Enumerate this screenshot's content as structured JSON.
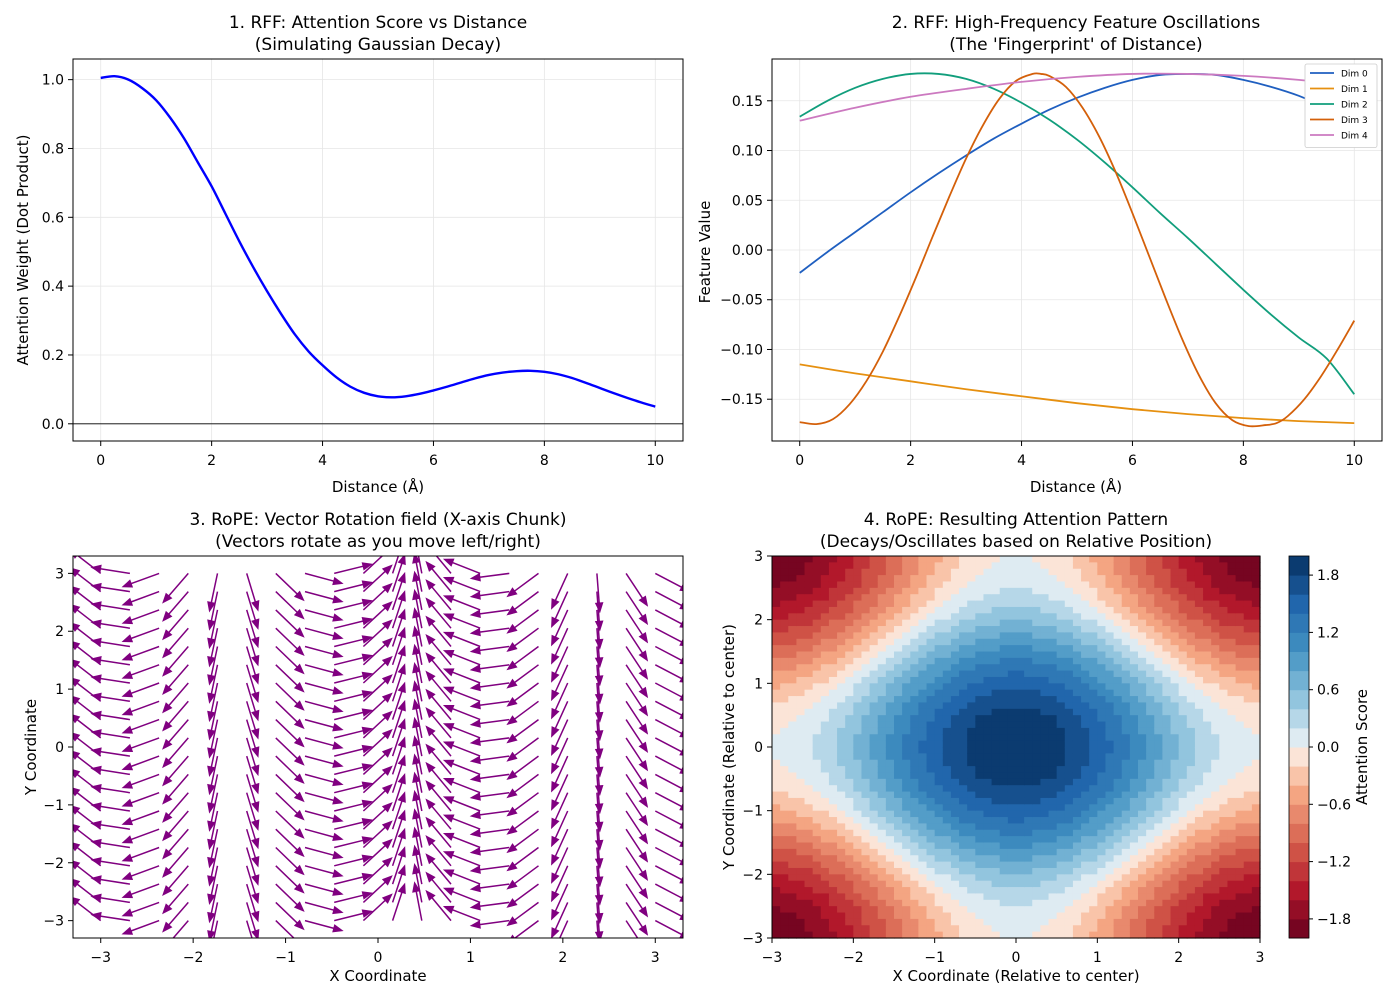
{
  "chart_data": [
    {
      "type": "line",
      "title_lines": [
        "1. RFF: Attention Score vs Distance",
        "(Simulating Gaussian Decay)"
      ],
      "xlabel": "Distance (Å)",
      "ylabel": "Attention Weight (Dot Product)",
      "xlim": [
        -0.5,
        10.5
      ],
      "ylim": [
        -0.05,
        1.06
      ],
      "xticks": [
        0,
        2,
        4,
        6,
        8,
        10
      ],
      "yticks": [
        0.0,
        0.2,
        0.4,
        0.6,
        0.8,
        1.0
      ],
      "grid": true,
      "reference_line_y": 0,
      "series": [
        {
          "color": "#0000ff",
          "x": [
            0,
            0.25,
            0.5,
            0.75,
            1,
            1.25,
            1.5,
            1.75,
            2,
            2.25,
            2.5,
            2.75,
            3,
            3.25,
            3.5,
            3.75,
            4,
            4.25,
            4.5,
            4.75,
            5,
            5.25,
            5.5,
            5.75,
            6,
            6.25,
            6.5,
            6.75,
            7,
            7.25,
            7.5,
            7.75,
            8,
            8.25,
            8.5,
            8.75,
            9,
            9.25,
            9.5,
            9.75,
            10
          ],
          "y": [
            1.005,
            1.01,
            1.0,
            0.975,
            0.94,
            0.89,
            0.83,
            0.76,
            0.69,
            0.61,
            0.53,
            0.455,
            0.385,
            0.32,
            0.26,
            0.21,
            0.17,
            0.135,
            0.108,
            0.09,
            0.08,
            0.077,
            0.08,
            0.087,
            0.097,
            0.108,
            0.12,
            0.132,
            0.142,
            0.149,
            0.153,
            0.154,
            0.151,
            0.144,
            0.133,
            0.119,
            0.104,
            0.089,
            0.075,
            0.062,
            0.05
          ]
        }
      ]
    },
    {
      "type": "line",
      "title_lines": [
        "2. RFF: High-Frequency Feature Oscillations",
        "(The 'Fingerprint' of Distance)"
      ],
      "xlabel": "Distance (Å)",
      "ylabel": "Feature Value",
      "xlim": [
        -0.5,
        10.5
      ],
      "ylim": [
        -0.192,
        0.192
      ],
      "xticks": [
        0,
        2,
        4,
        6,
        8,
        10
      ],
      "yticks": [
        -0.15,
        -0.1,
        -0.05,
        0.0,
        0.05,
        0.1,
        0.15
      ],
      "ytick_labels": [
        "−0.15",
        "−0.10",
        "−0.05",
        "0.00",
        "0.05",
        "0.10",
        "0.15"
      ],
      "grid": true,
      "legend_position": "top-right",
      "series": [
        {
          "name": "Dim 0",
          "color": "#1f5fc0",
          "x": [
            0,
            0.5,
            1,
            1.5,
            2,
            2.5,
            3,
            3.5,
            4,
            4.5,
            5,
            5.5,
            6,
            6.5,
            7,
            7.5,
            8,
            8.5,
            9,
            9.5,
            10
          ],
          "y": [
            -0.023,
            -0.002,
            0.018,
            0.038,
            0.058,
            0.077,
            0.095,
            0.112,
            0.127,
            0.141,
            0.153,
            0.163,
            0.171,
            0.176,
            0.177,
            0.176,
            0.171,
            0.164,
            0.155,
            0.143,
            0.128
          ]
        },
        {
          "name": "Dim 1",
          "color": "#e69010",
          "x": [
            0,
            1,
            2,
            3,
            4,
            5,
            6,
            7,
            8,
            9,
            10
          ],
          "y": [
            -0.115,
            -0.124,
            -0.132,
            -0.14,
            -0.147,
            -0.154,
            -0.16,
            -0.165,
            -0.169,
            -0.172,
            -0.174
          ]
        },
        {
          "name": "Dim 2",
          "color": "#119e7c",
          "x": [
            0,
            0.5,
            1,
            1.5,
            2,
            2.5,
            3,
            3.5,
            4,
            4.5,
            5,
            5.5,
            6,
            6.5,
            7,
            7.5,
            8,
            8.5,
            9,
            9.5,
            10
          ],
          "y": [
            0.134,
            0.15,
            0.163,
            0.172,
            0.177,
            0.177,
            0.172,
            0.162,
            0.148,
            0.131,
            0.111,
            0.088,
            0.063,
            0.037,
            0.012,
            -0.014,
            -0.04,
            -0.065,
            -0.088,
            -0.109,
            -0.145
          ]
        },
        {
          "name": "Dim 3",
          "color": "#d4600a",
          "x": [
            0,
            0.3,
            0.6,
            0.9,
            1.2,
            1.5,
            1.8,
            2.1,
            2.4,
            2.7,
            3.0,
            3.3,
            3.6,
            3.9,
            4.2,
            4.35,
            4.5,
            4.8,
            5.1,
            5.4,
            5.7,
            6.0,
            6.3,
            6.6,
            6.9,
            7.2,
            7.5,
            7.8,
            8.1,
            8.4,
            8.6,
            8.8,
            9.1,
            9.4,
            9.7,
            10.0
          ],
          "y": [
            -0.173,
            -0.175,
            -0.17,
            -0.155,
            -0.132,
            -0.102,
            -0.066,
            -0.027,
            0.014,
            0.054,
            0.092,
            0.125,
            0.152,
            0.17,
            0.177,
            0.177,
            0.175,
            0.164,
            0.143,
            0.114,
            0.078,
            0.037,
            -0.006,
            -0.049,
            -0.09,
            -0.126,
            -0.154,
            -0.171,
            -0.177,
            -0.176,
            -0.174,
            -0.167,
            -0.15,
            -0.127,
            -0.1,
            -0.071
          ]
        },
        {
          "name": "Dim 4",
          "color": "#cc79c0",
          "x": [
            0,
            1,
            2,
            3,
            4,
            5,
            6,
            7,
            8,
            9,
            10
          ],
          "y": [
            0.13,
            0.143,
            0.154,
            0.162,
            0.169,
            0.174,
            0.177,
            0.177,
            0.175,
            0.171,
            0.165
          ]
        }
      ]
    },
    {
      "type": "quiver",
      "title_lines": [
        "3. RoPE: Vector Rotation field (X-axis Chunk)",
        "(Vectors rotate as you move left/right)"
      ],
      "xlabel": "X Coordinate",
      "ylabel": "Y Coordinate",
      "xlim": [
        -3.3,
        3.3
      ],
      "ylim": [
        -3.3,
        3.3
      ],
      "xticks": [
        -3,
        -2,
        -1,
        0,
        1,
        2,
        3
      ],
      "yticks": [
        -3,
        -2,
        -1,
        0,
        1,
        2,
        3
      ],
      "tick_labels": [
        "−3",
        "−2",
        "−1",
        "0",
        "1",
        "2",
        "3"
      ],
      "grid": false,
      "color": "#800080",
      "grid_x_range": [
        -3,
        3
      ],
      "grid_x_count": 20,
      "grid_y_range": [
        -3,
        3
      ],
      "grid_y_count": 20,
      "vector_angle_rule": "angle = 1.0 + 1.6 * x radians (rotation varies with x only)"
    },
    {
      "type": "heatmap",
      "title_lines": [
        "4. RoPE: Resulting Attention Pattern",
        "(Decays/Oscillates based on Relative Position)"
      ],
      "xlabel": "X Coordinate (Relative to center)",
      "ylabel": "Y Coordinate (Relative to center)",
      "xlim": [
        -3,
        3
      ],
      "ylim": [
        -3,
        3
      ],
      "xticks": [
        -3,
        -2,
        -1,
        0,
        1,
        2,
        3
      ],
      "yticks": [
        -3,
        -2,
        -1,
        0,
        1,
        2,
        3
      ],
      "tick_labels": [
        "−3",
        "−2",
        "−1",
        "0",
        "1",
        "2",
        "3"
      ],
      "function": "cos(x) + cos(y)",
      "colormap": "RdBu",
      "levels": 20,
      "vmin": -2,
      "vmax": 2,
      "colorbar_label": "Attention Score",
      "colorbar_ticks": [
        1.8,
        1.2,
        0.6,
        0.0,
        -0.6,
        -1.2,
        -1.8
      ],
      "colorbar_tick_labels": [
        "1.8",
        "1.2",
        "0.6",
        "0.0",
        "−0.6",
        "−1.2",
        "−1.8"
      ]
    }
  ]
}
